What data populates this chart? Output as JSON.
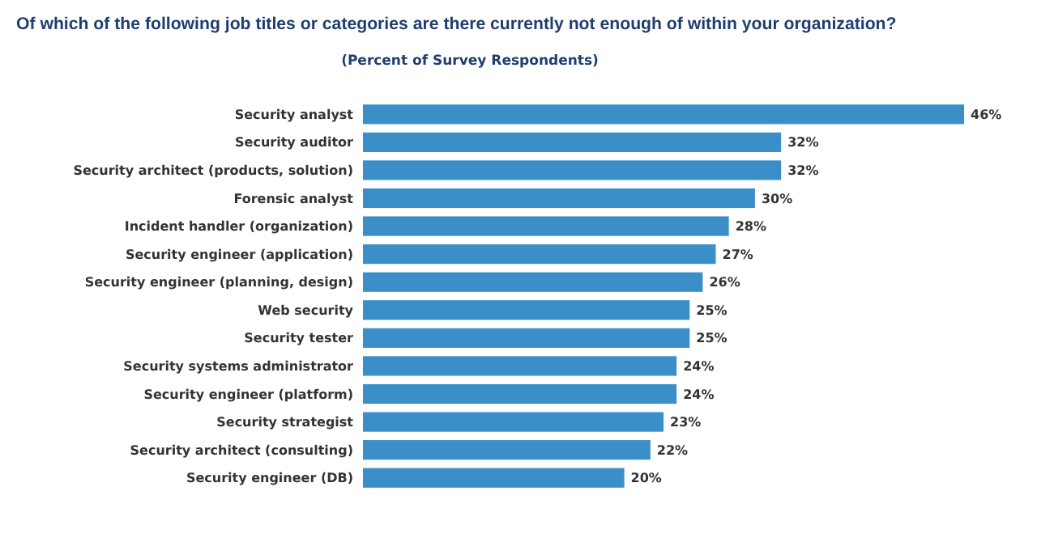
{
  "chart_data": {
    "type": "bar",
    "orientation": "horizontal",
    "title": "Of which of the following job titles or categories are there currently not enough of within your organization?",
    "subtitle": "(Percent of Survey Respondents)",
    "categories": [
      "Security analyst",
      "Security auditor",
      "Security architect (products, solution)",
      "Forensic analyst",
      "Incident handler (organization)",
      "Security engineer (application)",
      "Security engineer (planning, design)",
      "Web security",
      "Security tester",
      "Security systems administrator",
      "Security engineer (platform)",
      "Security strategist",
      "Security architect (consulting)",
      "Security engineer (DB)"
    ],
    "values": [
      46,
      32,
      32,
      30,
      28,
      27,
      26,
      25,
      25,
      24,
      24,
      23,
      22,
      20
    ],
    "value_labels": [
      "46%",
      "32%",
      "32%",
      "30%",
      "28%",
      "27%",
      "26%",
      "25%",
      "25%",
      "24%",
      "24%",
      "23%",
      "22%",
      "20%"
    ],
    "color": "#3b8fc9",
    "grid": false
  }
}
